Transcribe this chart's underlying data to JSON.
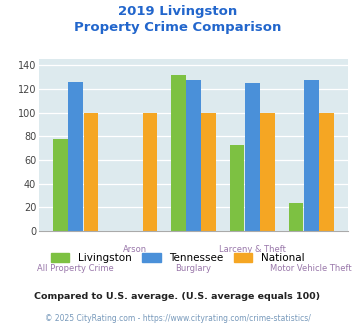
{
  "title_line1": "2019 Livingston",
  "title_line2": "Property Crime Comparison",
  "categories": [
    "All Property Crime",
    "Arson",
    "Burglary",
    "Larceny & Theft",
    "Motor Vehicle Theft"
  ],
  "livingston": [
    78,
    0,
    132,
    73,
    24
  ],
  "tennessee": [
    126,
    0,
    128,
    125,
    128
  ],
  "national": [
    100,
    100,
    100,
    100,
    100
  ],
  "color_livingston": "#7dc142",
  "color_tennessee": "#4a90d9",
  "color_national": "#f5a623",
  "ylim": [
    0,
    145
  ],
  "yticks": [
    0,
    20,
    40,
    60,
    80,
    100,
    120,
    140
  ],
  "bg_color": "#ddeaee",
  "title_color": "#2266cc",
  "xlabel_color_top": "#9977aa",
  "xlabel_color_bottom": "#9977aa",
  "footer_text1": "Compared to U.S. average. (U.S. average equals 100)",
  "footer_text2": "© 2025 CityRating.com - https://www.cityrating.com/crime-statistics/",
  "footer_color1": "#222222",
  "footer_color2": "#7799bb",
  "legend_labels": [
    "Livingston",
    "Tennessee",
    "National"
  ]
}
